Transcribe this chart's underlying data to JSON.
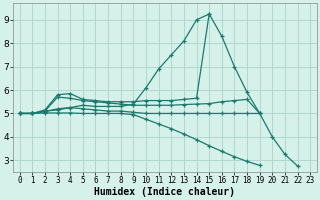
{
  "xlabel": "Humidex (Indice chaleur)",
  "background_color": "#d6f0ea",
  "grid_color": "#b0d8ce",
  "line_color": "#1a7a6e",
  "xlim": [
    -0.5,
    23.5
  ],
  "ylim": [
    2.5,
    9.7
  ],
  "yticks": [
    3,
    4,
    5,
    6,
    7,
    8,
    9
  ],
  "xticks": [
    0,
    1,
    2,
    3,
    4,
    5,
    6,
    7,
    8,
    9,
    10,
    11,
    12,
    13,
    14,
    15,
    16,
    17,
    18,
    19,
    20,
    21,
    22,
    23
  ],
  "series": [
    {
      "x": [
        0,
        1,
        2,
        3,
        4,
        5,
        6,
        7,
        8,
        9,
        10,
        11,
        12,
        13,
        14,
        15,
        16,
        17,
        18,
        19
      ],
      "y": [
        5.0,
        5.0,
        5.1,
        5.15,
        5.25,
        5.35,
        5.3,
        5.3,
        5.3,
        5.4,
        6.1,
        6.9,
        7.5,
        8.1,
        9.0,
        9.25,
        8.3,
        7.0,
        5.9,
        5.0
      ]
    },
    {
      "x": [
        0,
        1,
        2,
        3,
        4,
        5,
        6,
        7,
        8,
        9,
        10,
        11,
        12,
        13,
        14,
        15
      ],
      "y": [
        5.0,
        5.0,
        5.15,
        5.8,
        5.85,
        5.6,
        5.55,
        5.5,
        5.5,
        5.5,
        5.55,
        5.55,
        5.55,
        5.6,
        5.65,
        9.25
      ]
    },
    {
      "x": [
        0,
        1,
        2,
        3,
        4,
        5,
        6,
        7,
        8,
        9,
        10,
        11,
        12,
        13,
        14,
        15,
        16,
        17,
        18,
        19
      ],
      "y": [
        5.0,
        5.0,
        5.1,
        5.7,
        5.65,
        5.55,
        5.5,
        5.45,
        5.4,
        5.35,
        5.35,
        5.35,
        5.35,
        5.38,
        5.4,
        5.42,
        5.5,
        5.55,
        5.6,
        5.0
      ]
    },
    {
      "x": [
        0,
        1,
        2,
        3,
        4,
        5,
        6,
        7,
        8,
        9,
        10,
        11,
        12,
        13,
        14,
        15,
        16,
        17,
        18,
        19,
        20,
        21,
        22
      ],
      "y": [
        5.0,
        5.0,
        5.08,
        5.2,
        5.25,
        5.2,
        5.15,
        5.1,
        5.1,
        5.05,
        5.0,
        5.0,
        5.0,
        5.0,
        5.0,
        5.0,
        5.0,
        5.0,
        5.0,
        5.0,
        4.0,
        3.25,
        2.75
      ]
    },
    {
      "x": [
        0,
        1,
        2,
        3,
        4,
        5,
        6,
        7,
        8,
        9,
        10,
        11,
        12,
        13,
        14,
        15,
        16,
        17,
        18,
        19,
        20,
        21,
        22,
        23
      ],
      "y": [
        5.0,
        5.0,
        5.02,
        5.02,
        5.02,
        5.0,
        5.0,
        5.0,
        5.0,
        4.95,
        4.75,
        4.55,
        4.35,
        4.12,
        3.88,
        3.62,
        3.38,
        3.15,
        2.95,
        2.78,
        null,
        null,
        null,
        null
      ]
    }
  ]
}
